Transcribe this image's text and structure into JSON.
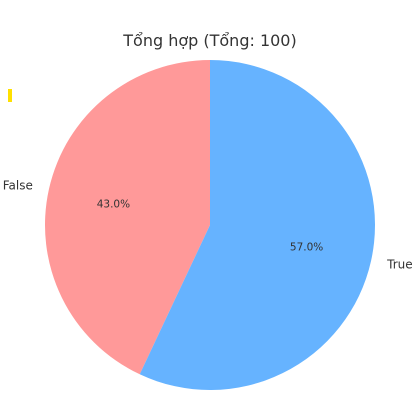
{
  "chart_data": {
    "type": "pie",
    "title": "Tổng hợp (Tổng: 100)",
    "categories": [
      "False",
      "True"
    ],
    "values": [
      43,
      57
    ],
    "percent_labels": [
      "43.0%",
      "57.0%"
    ],
    "colors": [
      "#ff9999",
      "#66b3ff"
    ],
    "start_angle": "top (12 o'clock), counter-clockwise",
    "legend": "none"
  },
  "marker_color": "#ffe000"
}
